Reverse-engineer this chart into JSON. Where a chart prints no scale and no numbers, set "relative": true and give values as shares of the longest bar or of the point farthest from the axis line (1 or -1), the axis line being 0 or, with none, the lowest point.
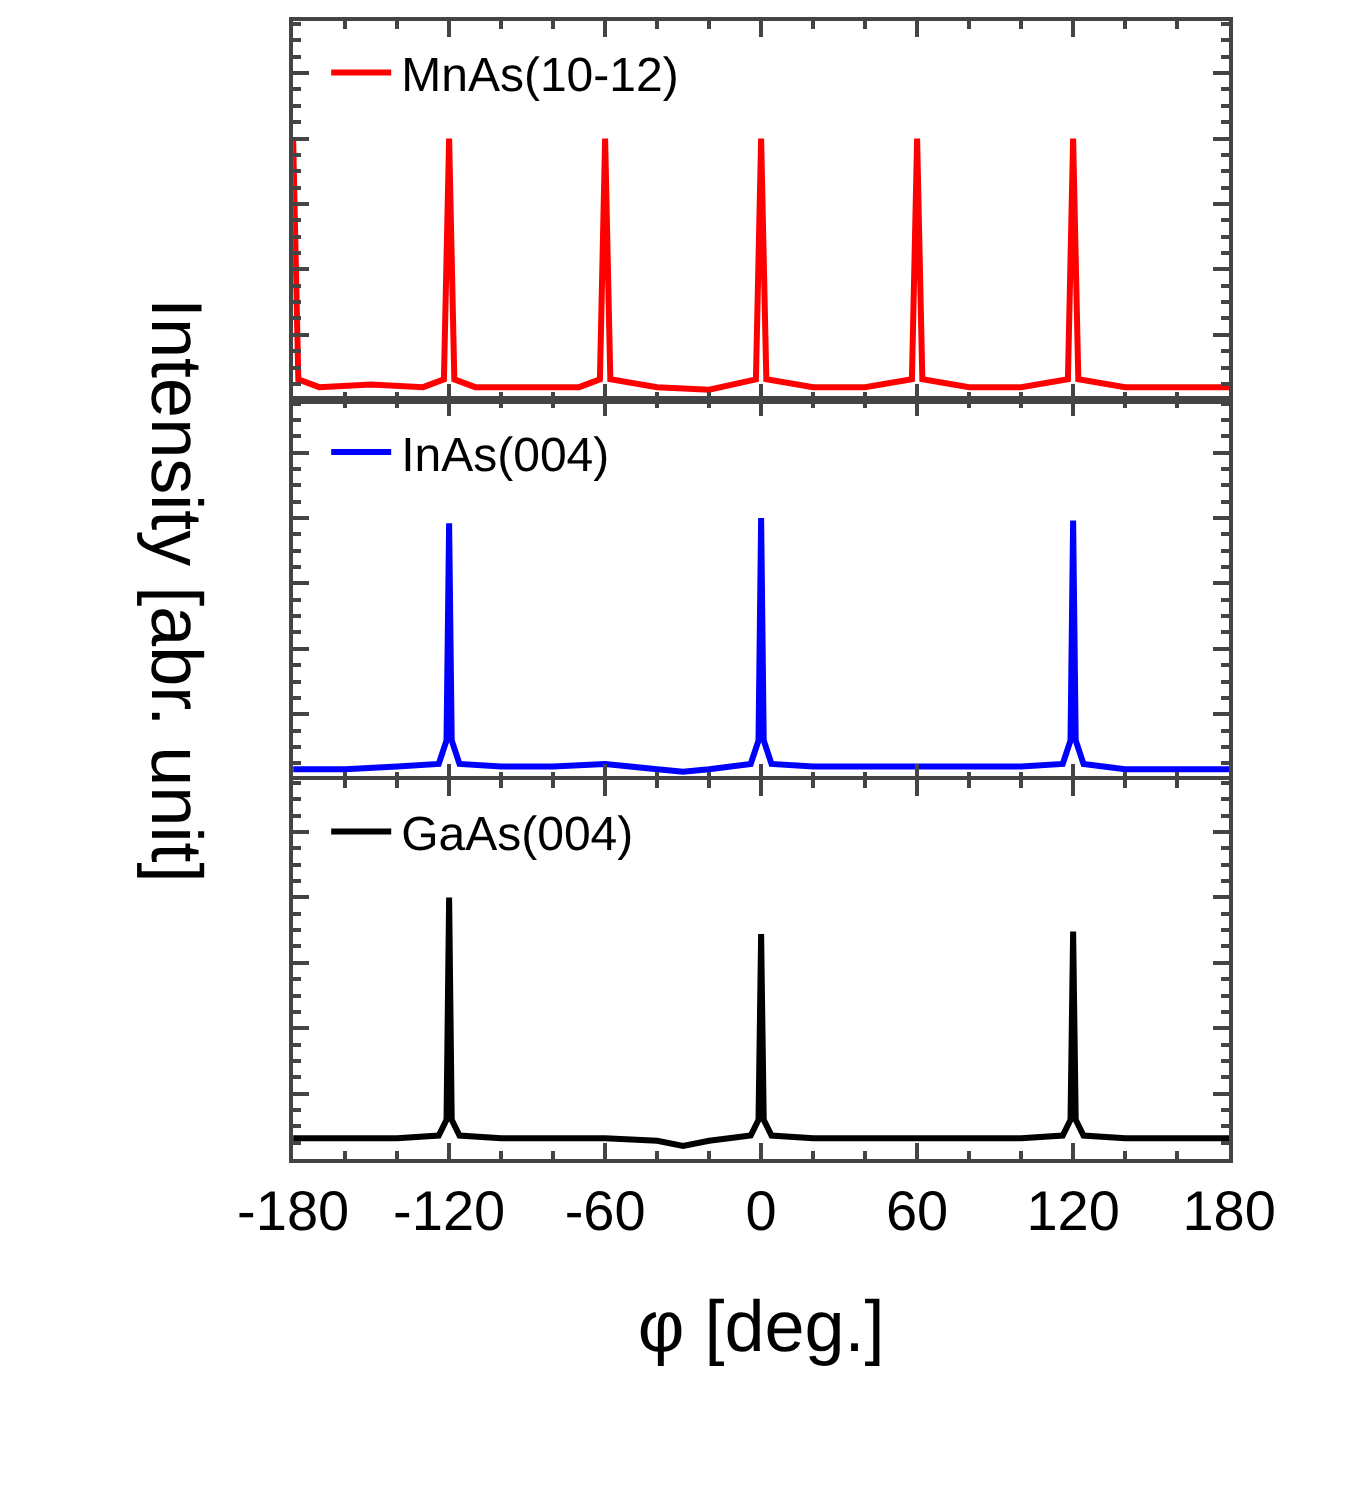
{
  "chart_data": [
    {
      "type": "line",
      "relative": true,
      "tick_labels": false,
      "xlim": [
        -180,
        180
      ],
      "xticks": [
        -180,
        -120,
        -60,
        0,
        60,
        120,
        180
      ],
      "legend": "top left",
      "series": [
        {
          "name": "MnAs(10-12)",
          "color": "#ff0000",
          "x": [
            -180,
            -178,
            -170,
            -150,
            -130,
            -122,
            -120,
            -118,
            -110,
            -90,
            -70,
            -62,
            -60,
            -58,
            -40,
            -20,
            -2,
            0,
            2,
            20,
            40,
            58,
            60,
            62,
            80,
            100,
            118,
            120,
            122,
            140,
            160,
            180
          ],
          "values": [
            1.0,
            0.08,
            0.05,
            0.06,
            0.05,
            0.08,
            1.0,
            0.08,
            0.05,
            0.05,
            0.05,
            0.08,
            1.0,
            0.08,
            0.05,
            0.04,
            0.08,
            1.0,
            0.08,
            0.05,
            0.05,
            0.08,
            1.0,
            0.08,
            0.05,
            0.05,
            0.08,
            1.0,
            0.08,
            0.05,
            0.05,
            0.05
          ]
        }
      ]
    },
    {
      "type": "line",
      "relative": true,
      "tick_labels": false,
      "xlim": [
        -180,
        180
      ],
      "xticks": [
        -180,
        -120,
        -60,
        0,
        60,
        120,
        180
      ],
      "legend": "top left",
      "ylabel": "Intensity [abr. unit]",
      "series": [
        {
          "name": "InAs(004)",
          "color": "#0000ff",
          "x": [
            -180,
            -160,
            -140,
            -124,
            -121,
            -120,
            -119,
            -116,
            -100,
            -80,
            -60,
            -40,
            -30,
            -20,
            -4,
            -1,
            0,
            1,
            4,
            20,
            40,
            60,
            80,
            100,
            116,
            119,
            120,
            121,
            124,
            140,
            160,
            180
          ],
          "values": [
            0.04,
            0.04,
            0.05,
            0.06,
            0.15,
            0.98,
            0.15,
            0.06,
            0.05,
            0.05,
            0.06,
            0.04,
            0.03,
            0.04,
            0.06,
            0.15,
            1.0,
            0.15,
            0.06,
            0.05,
            0.05,
            0.05,
            0.05,
            0.05,
            0.06,
            0.15,
            0.99,
            0.15,
            0.06,
            0.04,
            0.04,
            0.04
          ]
        }
      ]
    },
    {
      "type": "line",
      "relative": true,
      "xlim": [
        -180,
        180
      ],
      "xticks": [
        -180,
        -120,
        -60,
        0,
        60,
        120,
        180
      ],
      "legend": "top left",
      "xlabel": "φ [deg.]",
      "series": [
        {
          "name": "GaAs(004)",
          "color": "#000000",
          "x": [
            -180,
            -160,
            -140,
            -124,
            -121,
            -120,
            -119,
            -116,
            -100,
            -80,
            -60,
            -40,
            -30,
            -20,
            -4,
            -1,
            0,
            1,
            4,
            20,
            40,
            60,
            80,
            100,
            116,
            119,
            120,
            121,
            124,
            140,
            160,
            180
          ],
          "values": [
            0.08,
            0.08,
            0.08,
            0.09,
            0.15,
            1.0,
            0.15,
            0.09,
            0.08,
            0.08,
            0.08,
            0.07,
            0.05,
            0.07,
            0.09,
            0.15,
            0.86,
            0.15,
            0.09,
            0.08,
            0.08,
            0.08,
            0.08,
            0.08,
            0.09,
            0.15,
            0.87,
            0.15,
            0.09,
            0.08,
            0.08,
            0.08
          ]
        }
      ]
    }
  ]
}
